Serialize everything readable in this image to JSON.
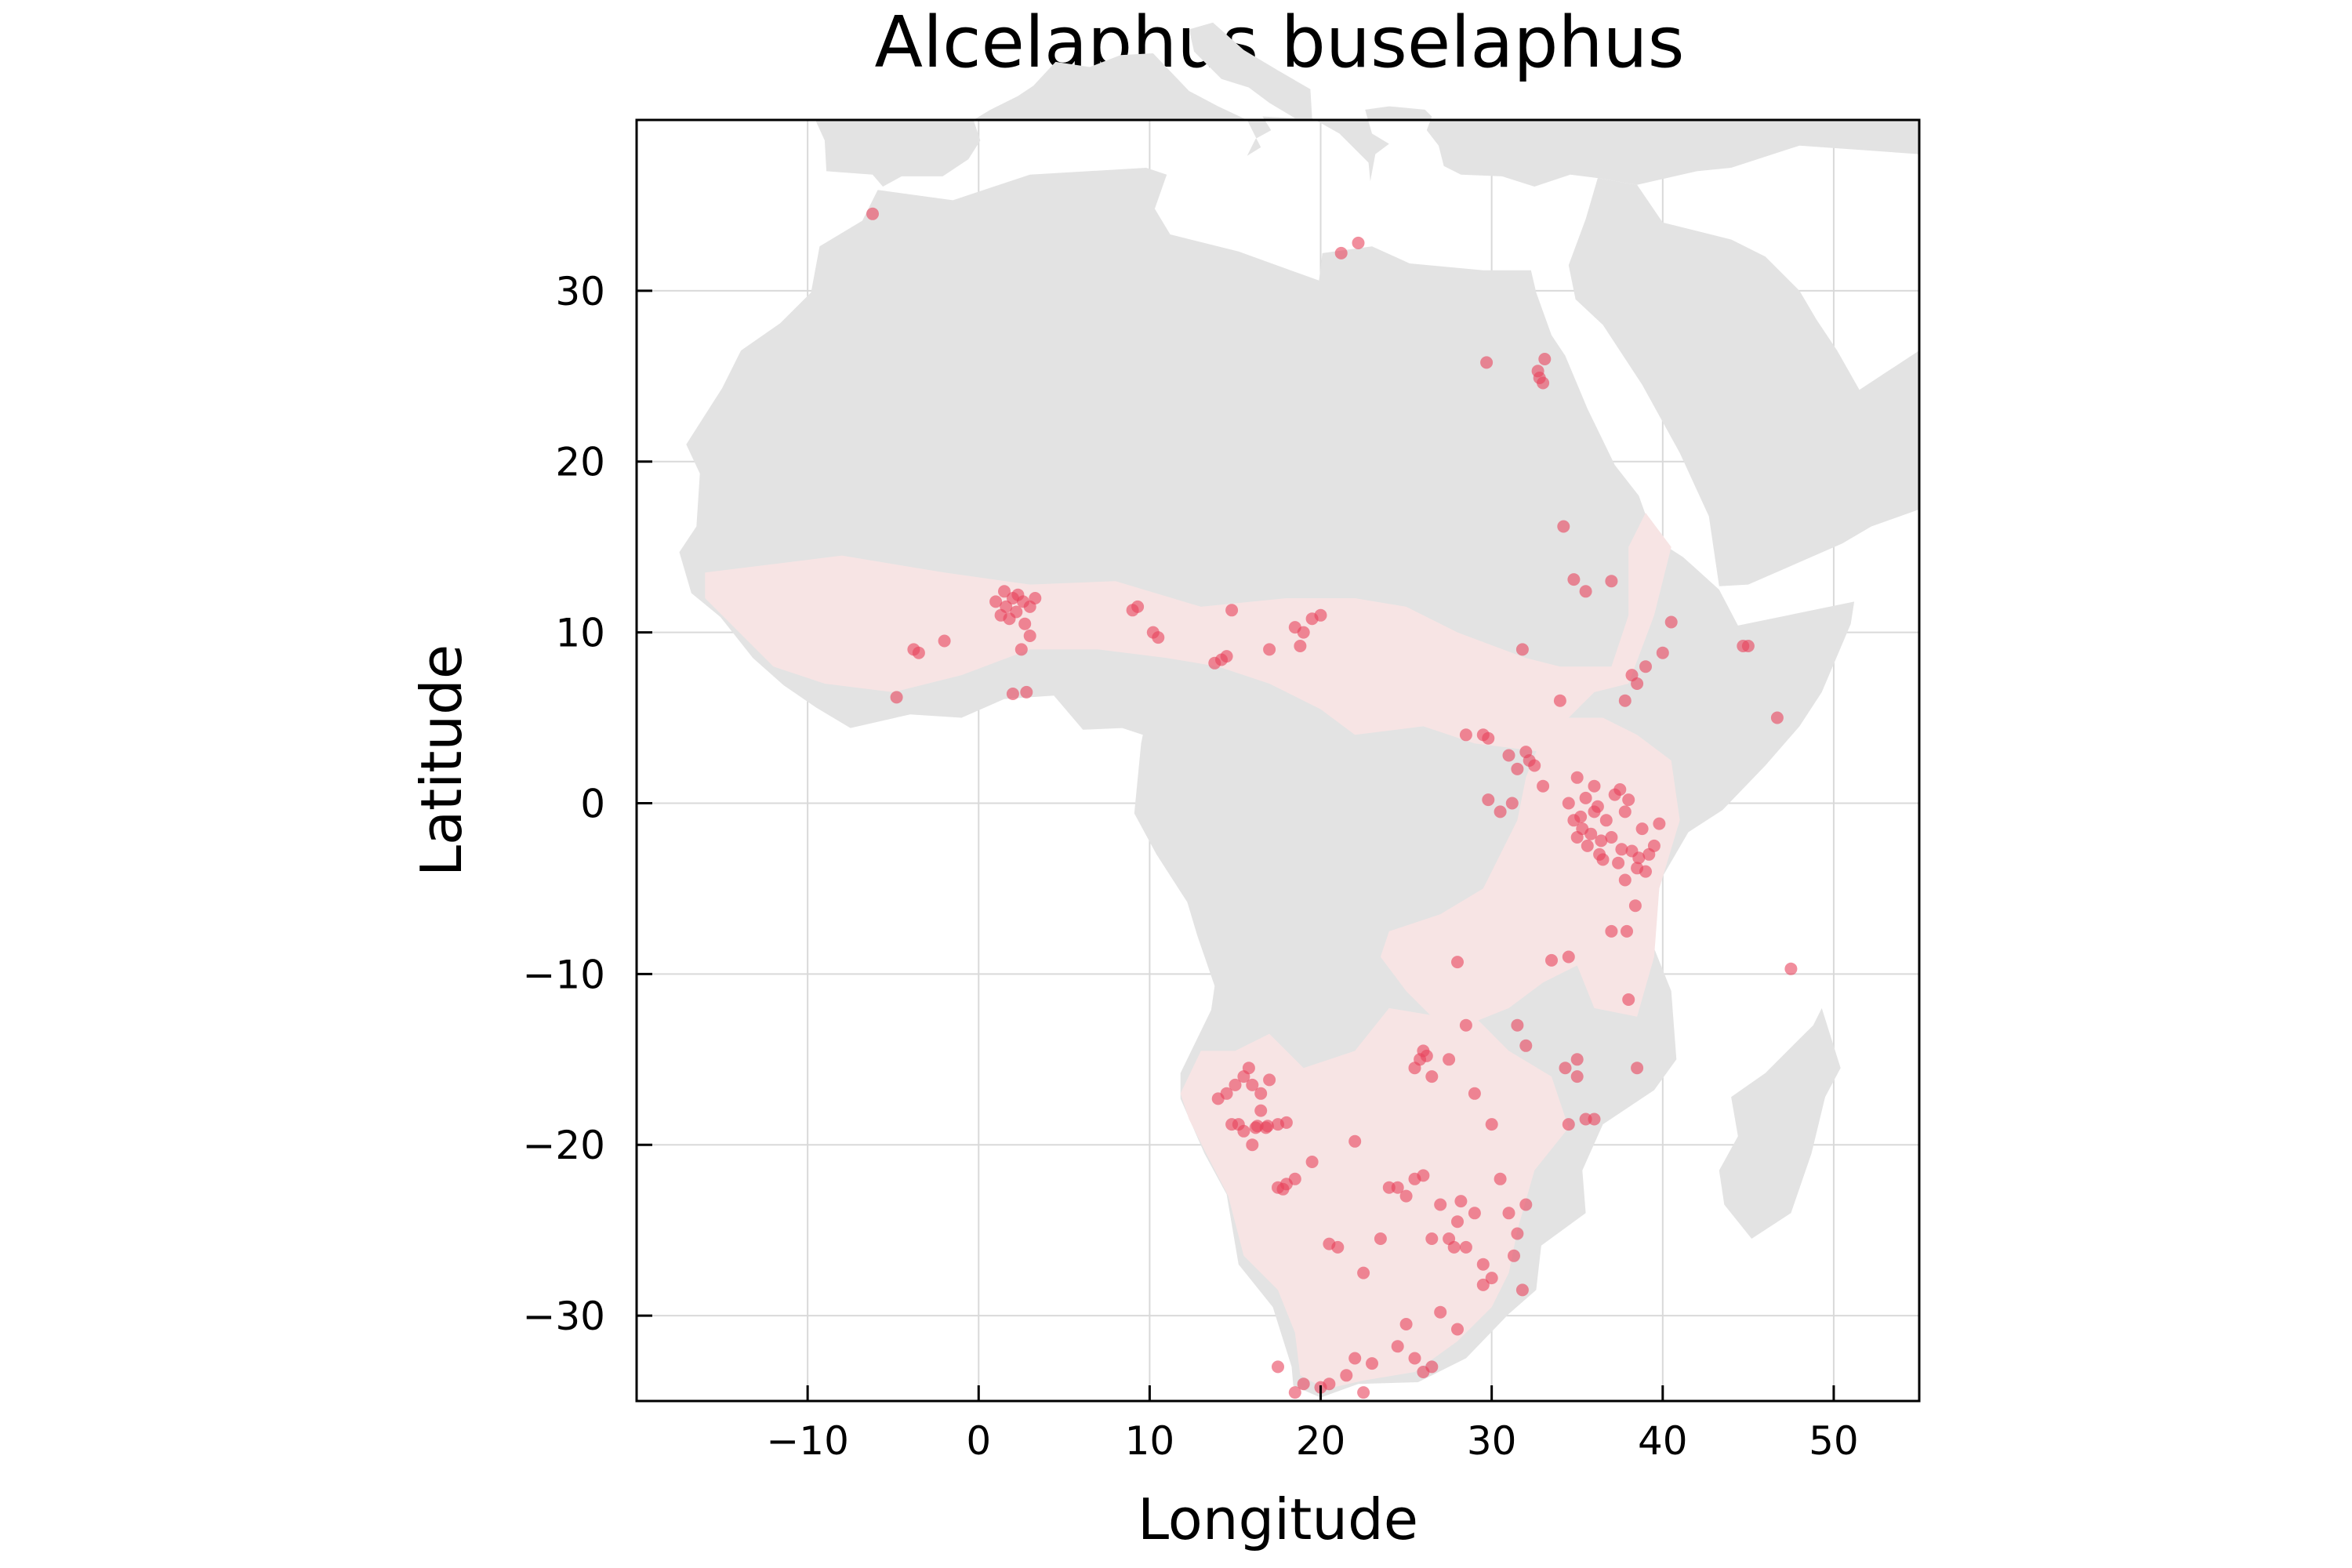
{
  "chart_data": {
    "type": "scatter",
    "title": "Alcelaphus buselaphus",
    "xlabel": "Longitude",
    "ylabel": "Latitude",
    "xlim": [
      -20,
      55
    ],
    "ylim": [
      -35,
      40
    ],
    "xticks": [
      -10,
      0,
      10,
      20,
      30,
      40,
      50
    ],
    "xtick_labels": [
      "−10",
      "0",
      "10",
      "20",
      "30",
      "40",
      "50"
    ],
    "yticks": [
      -30,
      -20,
      -10,
      0,
      10,
      20,
      30
    ],
    "ytick_labels": [
      "−30",
      "−20",
      "−10",
      "0",
      "10",
      "20",
      "30"
    ],
    "grid": true,
    "legend": "none",
    "colors": {
      "points": "#e8425c",
      "land": "#e3e3e3",
      "range": "#f7e4e4"
    },
    "series": [
      {
        "x": [
          -6.2,
          21.2,
          22.2,
          29.7,
          32.7,
          33.0,
          33.1,
          32.8,
          34.2,
          34.8,
          35.5,
          37.0,
          40.5,
          44.7,
          45.0,
          46.7,
          47.5,
          38.5,
          38.2,
          37.8,
          39.0,
          40.0,
          -3.8,
          -3.5,
          -2.0,
          -4.8,
          1.0,
          1.3,
          1.6,
          2.0,
          2.3,
          2.6,
          3.0,
          3.3,
          1.8,
          2.2,
          2.7,
          3.0,
          2.5,
          2.0,
          2.8,
          1.5,
          9.0,
          9.3,
          10.2,
          10.5,
          13.8,
          14.2,
          14.5,
          14.8,
          17.0,
          18.5,
          18.8,
          19.0,
          19.5,
          20.0,
          31.8,
          29.5,
          29.8,
          28.5,
          32.2,
          31.5,
          31.0,
          32.5,
          32.0,
          31.2,
          30.5,
          29.8,
          33.0,
          34.0,
          34.8,
          35.0,
          35.3,
          35.6,
          36.0,
          36.3,
          36.7,
          37.0,
          37.4,
          37.8,
          38.2,
          38.6,
          39.0,
          35.2,
          35.8,
          36.4,
          37.2,
          38.0,
          38.8,
          39.5,
          36.0,
          37.5,
          38.5,
          34.5,
          35.5,
          36.5,
          37.8,
          39.2,
          38.4,
          37.9,
          39.8,
          35.0,
          36.2,
          37.6,
          38.0,
          34.5,
          33.5,
          35.0,
          37.0,
          38.5,
          28.0,
          26.0,
          25.8,
          26.5,
          25.5,
          27.5,
          26.2,
          28.5,
          30.0,
          31.5,
          32.0,
          29.0,
          34.5,
          35.0,
          35.5,
          36.0,
          34.3,
          14.0,
          14.5,
          15.0,
          15.5,
          16.0,
          16.5,
          17.0,
          15.2,
          15.8,
          16.3,
          16.8,
          14.8,
          15.5,
          16.2,
          16.9,
          17.5,
          18.0,
          16.0,
          17.5,
          18.0,
          18.5,
          17.8,
          16.5,
          19.5,
          22.0,
          24.0,
          25.5,
          26.0,
          27.0,
          27.5,
          28.0,
          28.5,
          29.0,
          30.5,
          31.0,
          31.5,
          31.3,
          20.5,
          21.0,
          22.5,
          23.5,
          24.5,
          25.0,
          26.5,
          27.8,
          28.2,
          29.5,
          30.0,
          31.8,
          32.0,
          19.0,
          20.0,
          21.5,
          22.0,
          23.0,
          24.5,
          25.5,
          26.0,
          26.5,
          17.5,
          18.5,
          20.5,
          22.5,
          25.0,
          27.0,
          28.0,
          29.5
        ],
        "y": [
          34.5,
          32.2,
          32.8,
          25.8,
          25.3,
          24.6,
          26.0,
          24.9,
          16.2,
          13.1,
          12.4,
          13.0,
          10.6,
          9.2,
          9.2,
          5.0,
          -9.7,
          7.0,
          7.5,
          6.0,
          8.0,
          8.8,
          9.0,
          8.8,
          9.5,
          6.2,
          11.8,
          11.0,
          11.5,
          12.0,
          12.2,
          11.8,
          11.5,
          12.0,
          10.8,
          11.2,
          10.5,
          9.8,
          9.0,
          6.4,
          6.5,
          12.4,
          11.3,
          11.5,
          10.0,
          9.7,
          8.2,
          8.4,
          8.6,
          11.3,
          9.0,
          10.3,
          9.2,
          10.0,
          10.8,
          11.0,
          9.0,
          4.0,
          3.8,
          4.0,
          2.5,
          2.0,
          2.8,
          2.2,
          3.0,
          0.0,
          -0.5,
          0.2,
          1.0,
          6.0,
          -1.0,
          -2.0,
          -1.5,
          -2.5,
          -0.5,
          -3.0,
          -1.0,
          -2.0,
          -3.5,
          -0.5,
          -2.8,
          -3.2,
          -4.0,
          -0.8,
          -1.8,
          -2.2,
          0.5,
          0.2,
          -1.5,
          -2.5,
          1.0,
          0.8,
          -3.8,
          0.0,
          0.3,
          -3.3,
          -4.5,
          -3.0,
          -6.0,
          -7.5,
          -1.2,
          1.5,
          -0.2,
          -2.7,
          -11.5,
          -9.0,
          -9.2,
          -15.0,
          -7.5,
          -15.5,
          -9.3,
          -14.5,
          -15.0,
          -16.0,
          -15.5,
          -15.0,
          -14.8,
          -13.0,
          -18.8,
          -13.0,
          -14.2,
          -17.0,
          -18.8,
          -16.0,
          -18.5,
          -18.5,
          -15.5,
          -17.3,
          -17.0,
          -16.5,
          -16.0,
          -16.5,
          -17.0,
          -16.2,
          -18.8,
          -15.5,
          -18.9,
          -19.0,
          -18.8,
          -19.2,
          -19.0,
          -18.9,
          -18.8,
          -18.7,
          -20.0,
          -22.5,
          -22.3,
          -22.0,
          -22.6,
          -18.0,
          -21.0,
          -19.8,
          -22.5,
          -22.0,
          -21.8,
          -23.5,
          -25.5,
          -24.5,
          -26.0,
          -24.0,
          -22.0,
          -24.0,
          -25.2,
          -26.5,
          -25.8,
          -26.0,
          -27.5,
          -25.5,
          -22.5,
          -23.0,
          -25.5,
          -26.0,
          -23.3,
          -27.0,
          -27.8,
          -28.5,
          -23.5,
          -34.0,
          -34.2,
          -33.5,
          -32.5,
          -32.8,
          -31.8,
          -32.5,
          -33.3,
          -33.0,
          -33.0,
          -34.5,
          -34.0,
          -34.5,
          -30.5,
          -29.8,
          -30.8,
          -28.2
        ]
      }
    ]
  }
}
